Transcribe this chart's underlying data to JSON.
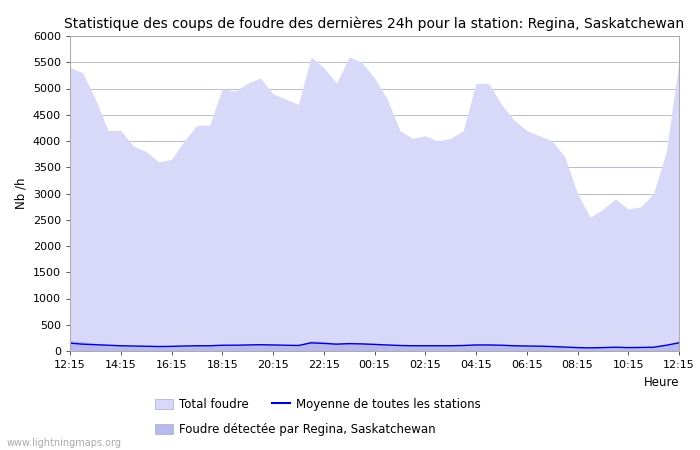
{
  "title": "Statistique des coups de foudre des dernières 24h pour la station: Regina, Saskatchewan",
  "ylabel": "Nb /h",
  "xlabel": "Heure",
  "xlabels": [
    "12:15",
    "14:15",
    "16:15",
    "18:15",
    "20:15",
    "22:15",
    "00:15",
    "02:15",
    "04:15",
    "06:15",
    "08:15",
    "10:15",
    "12:15"
  ],
  "ylim": [
    0,
    6000
  ],
  "yticks": [
    0,
    500,
    1000,
    1500,
    2000,
    2500,
    3000,
    3500,
    4000,
    4500,
    5000,
    5500,
    6000
  ],
  "background_color": "#ffffff",
  "plot_bg_color": "#ffffff",
  "grid_color": "#bbbbcc",
  "fill_color_total": "#d8d8f8",
  "fill_color_regina": "#b8b8ee",
  "line_color_mean": "#0000cc",
  "total_foudre": [
    5400,
    5300,
    4800,
    4200,
    4200,
    3900,
    3800,
    3600,
    3650,
    4000,
    4300,
    4300,
    5000,
    4950,
    5100,
    5200,
    4900,
    4800,
    4700,
    5600,
    5400,
    5100,
    5600,
    5500,
    5200,
    4800,
    4200,
    4050,
    4100,
    4000,
    4050,
    4200,
    5100,
    5100,
    4700,
    4400,
    4200,
    4100,
    4000,
    3700,
    3000,
    2550,
    2700,
    2900,
    2700,
    2750,
    3000,
    3800,
    5500
  ],
  "regina_foudre": [
    200,
    180,
    150,
    120,
    110,
    100,
    100,
    90,
    90,
    100,
    110,
    110,
    120,
    120,
    130,
    140,
    130,
    120,
    110,
    200,
    180,
    160,
    170,
    160,
    150,
    130,
    120,
    110,
    110,
    110,
    110,
    120,
    130,
    130,
    120,
    110,
    100,
    100,
    90,
    80,
    70,
    65,
    70,
    80,
    70,
    75,
    80,
    120,
    200
  ],
  "mean_foudre": [
    150,
    130,
    120,
    110,
    100,
    95,
    90,
    85,
    88,
    95,
    100,
    100,
    110,
    110,
    115,
    120,
    115,
    110,
    105,
    155,
    145,
    130,
    140,
    135,
    125,
    115,
    105,
    100,
    100,
    100,
    100,
    105,
    115,
    115,
    110,
    100,
    95,
    92,
    85,
    75,
    65,
    60,
    65,
    72,
    65,
    68,
    72,
    110,
    155
  ],
  "legend_total": "Total foudre",
  "legend_mean": "Moyenne de toutes les stations",
  "legend_regina": "Foudre détectée par Regina, Saskatchewan",
  "watermark": "www.lightningmaps.org",
  "title_fontsize": 10,
  "label_fontsize": 8.5,
  "tick_fontsize": 8
}
